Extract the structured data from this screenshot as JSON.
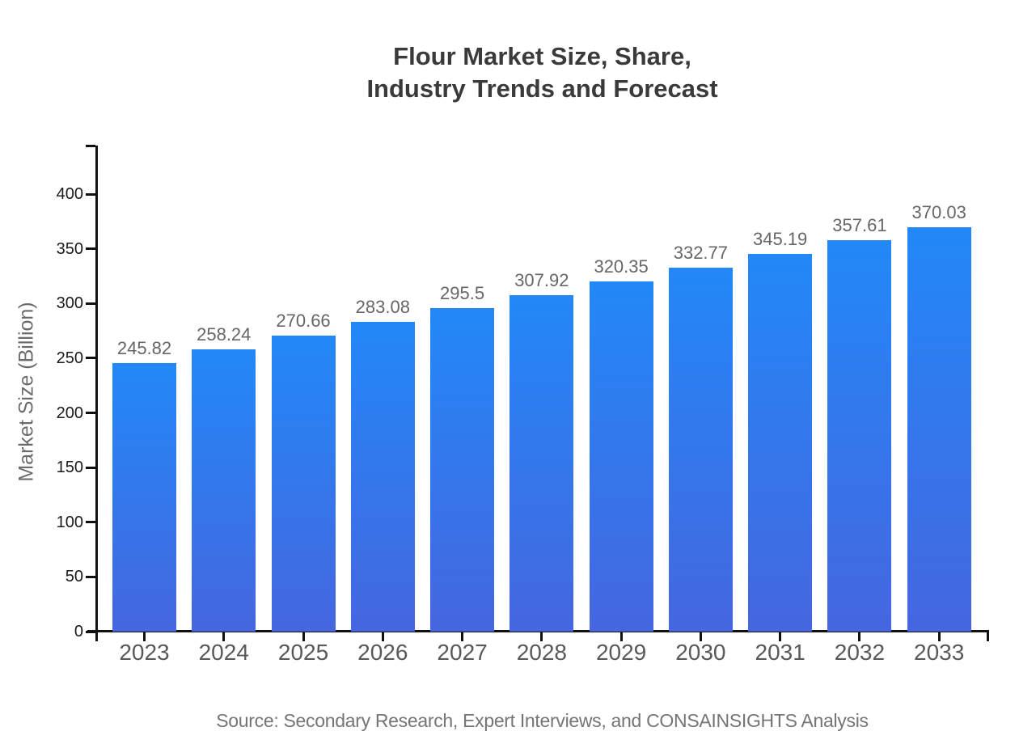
{
  "chart_data": {
    "type": "bar",
    "title_lines": [
      "Flour Market Size, Share,",
      "Industry Trends and Forecast"
    ],
    "categories": [
      "2023",
      "2024",
      "2025",
      "2026",
      "2027",
      "2028",
      "2029",
      "2030",
      "2031",
      "2032",
      "2033"
    ],
    "values": [
      245.82,
      258.24,
      270.66,
      283.08,
      295.5,
      307.92,
      320.35,
      332.77,
      345.19,
      357.61,
      370.03
    ],
    "value_labels": [
      "245.82",
      "258.24",
      "270.66",
      "283.08",
      "295.5",
      "307.92",
      "320.35",
      "332.77",
      "345.19",
      "357.61",
      "370.03"
    ],
    "ylabel": "Market Size (Billion)",
    "xlabel": "",
    "yticks": [
      0,
      50,
      100,
      150,
      200,
      250,
      300,
      350,
      400
    ],
    "ylim": [
      0,
      444
    ],
    "grid": "off",
    "legend": "none",
    "bar_color_top": "#2388F7",
    "bar_color_bottom": "#4566E0",
    "source": "Source: Secondary Research, Expert Interviews, and CONSAINSIGHTS Analysis"
  }
}
